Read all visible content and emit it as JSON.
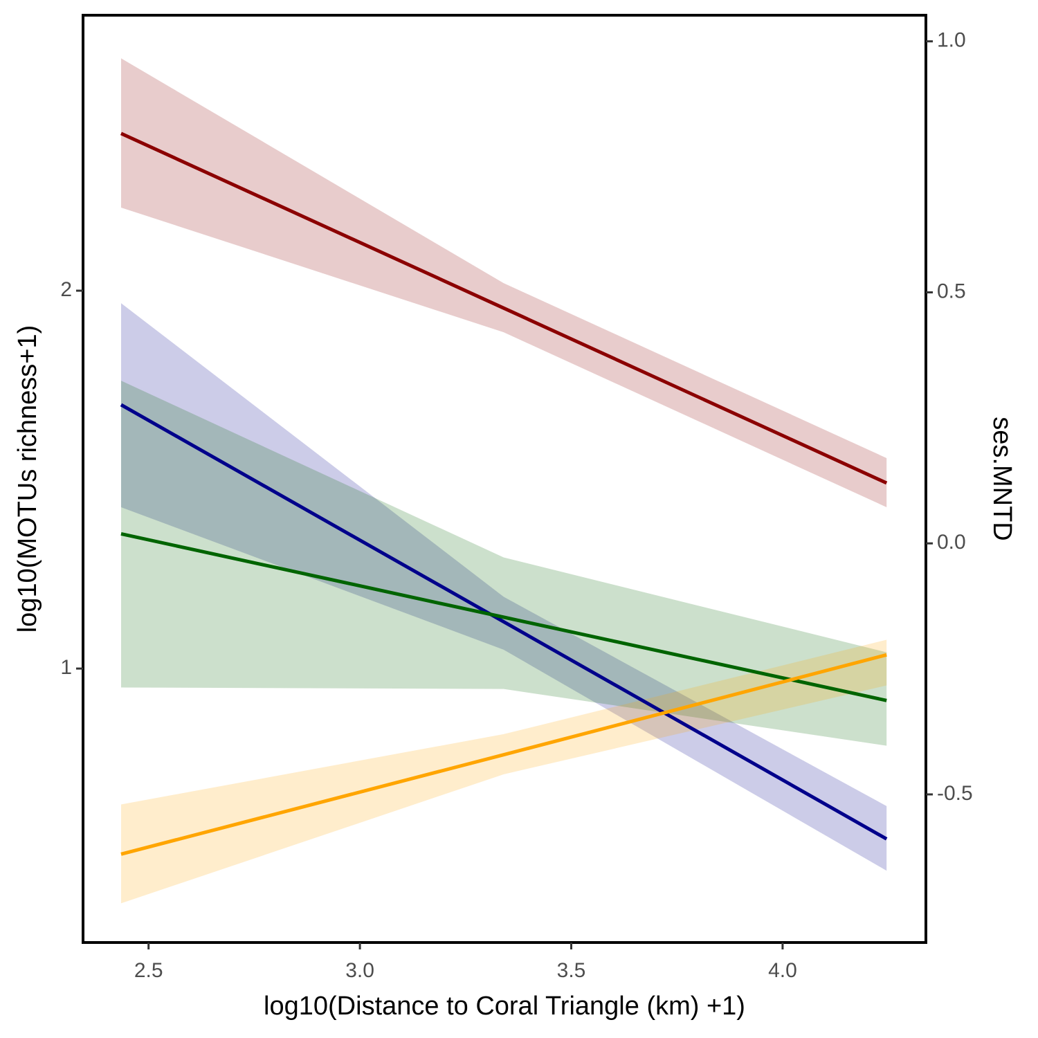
{
  "chart_data": {
    "type": "line",
    "x_label": "log10(Distance to Coral Triangle (km) +1)",
    "y_label": "log10(MOTUs richness+1)",
    "y2_label": "ses.MNTD",
    "x": [
      2.435,
      3.34,
      4.246
    ],
    "xlim": [
      2.345,
      4.339
    ],
    "xticks": [
      2.5,
      {
        "value": 3,
        "label": "3.0"
      },
      3.5,
      {
        "value": 4,
        "label": "4.0"
      }
    ],
    "ylim": [
      0.275,
      2.729
    ],
    "yticks": [
      1,
      2
    ],
    "y2lim": [
      -0.795,
      1.052
    ],
    "y2ticks": [
      {
        "value": 1,
        "label": "1.0"
      },
      0.5,
      {
        "value": 0,
        "label": "0.0"
      },
      -0.5
    ],
    "band_opacity": 0.2,
    "series": [
      {
        "color": "#8b0000",
        "values": [
          2.416,
          1.954,
          1.491
        ],
        "lower": [
          2.22,
          1.89,
          1.427
        ],
        "upper": [
          2.615,
          2.02,
          1.557
        ]
      },
      {
        "color": "#00008b",
        "values": [
          1.698,
          1.124,
          0.549
        ],
        "lower": [
          1.427,
          1.05,
          0.465
        ],
        "upper": [
          1.967,
          1.19,
          0.636
        ]
      },
      {
        "color": "#006400",
        "axis": "y2",
        "values": [
          0.019,
          -0.147,
          -0.313
        ],
        "lower": [
          -0.287,
          -0.29,
          -0.403
        ],
        "upper": [
          0.324,
          -0.028,
          -0.217
        ]
      },
      {
        "color": "#ffa500",
        "axis": "y2",
        "values": [
          -0.619,
          -0.421,
          -0.222
        ],
        "lower": [
          -0.717,
          -0.46,
          -0.283
        ],
        "upper": [
          -0.52,
          -0.38,
          -0.192
        ]
      }
    ]
  }
}
